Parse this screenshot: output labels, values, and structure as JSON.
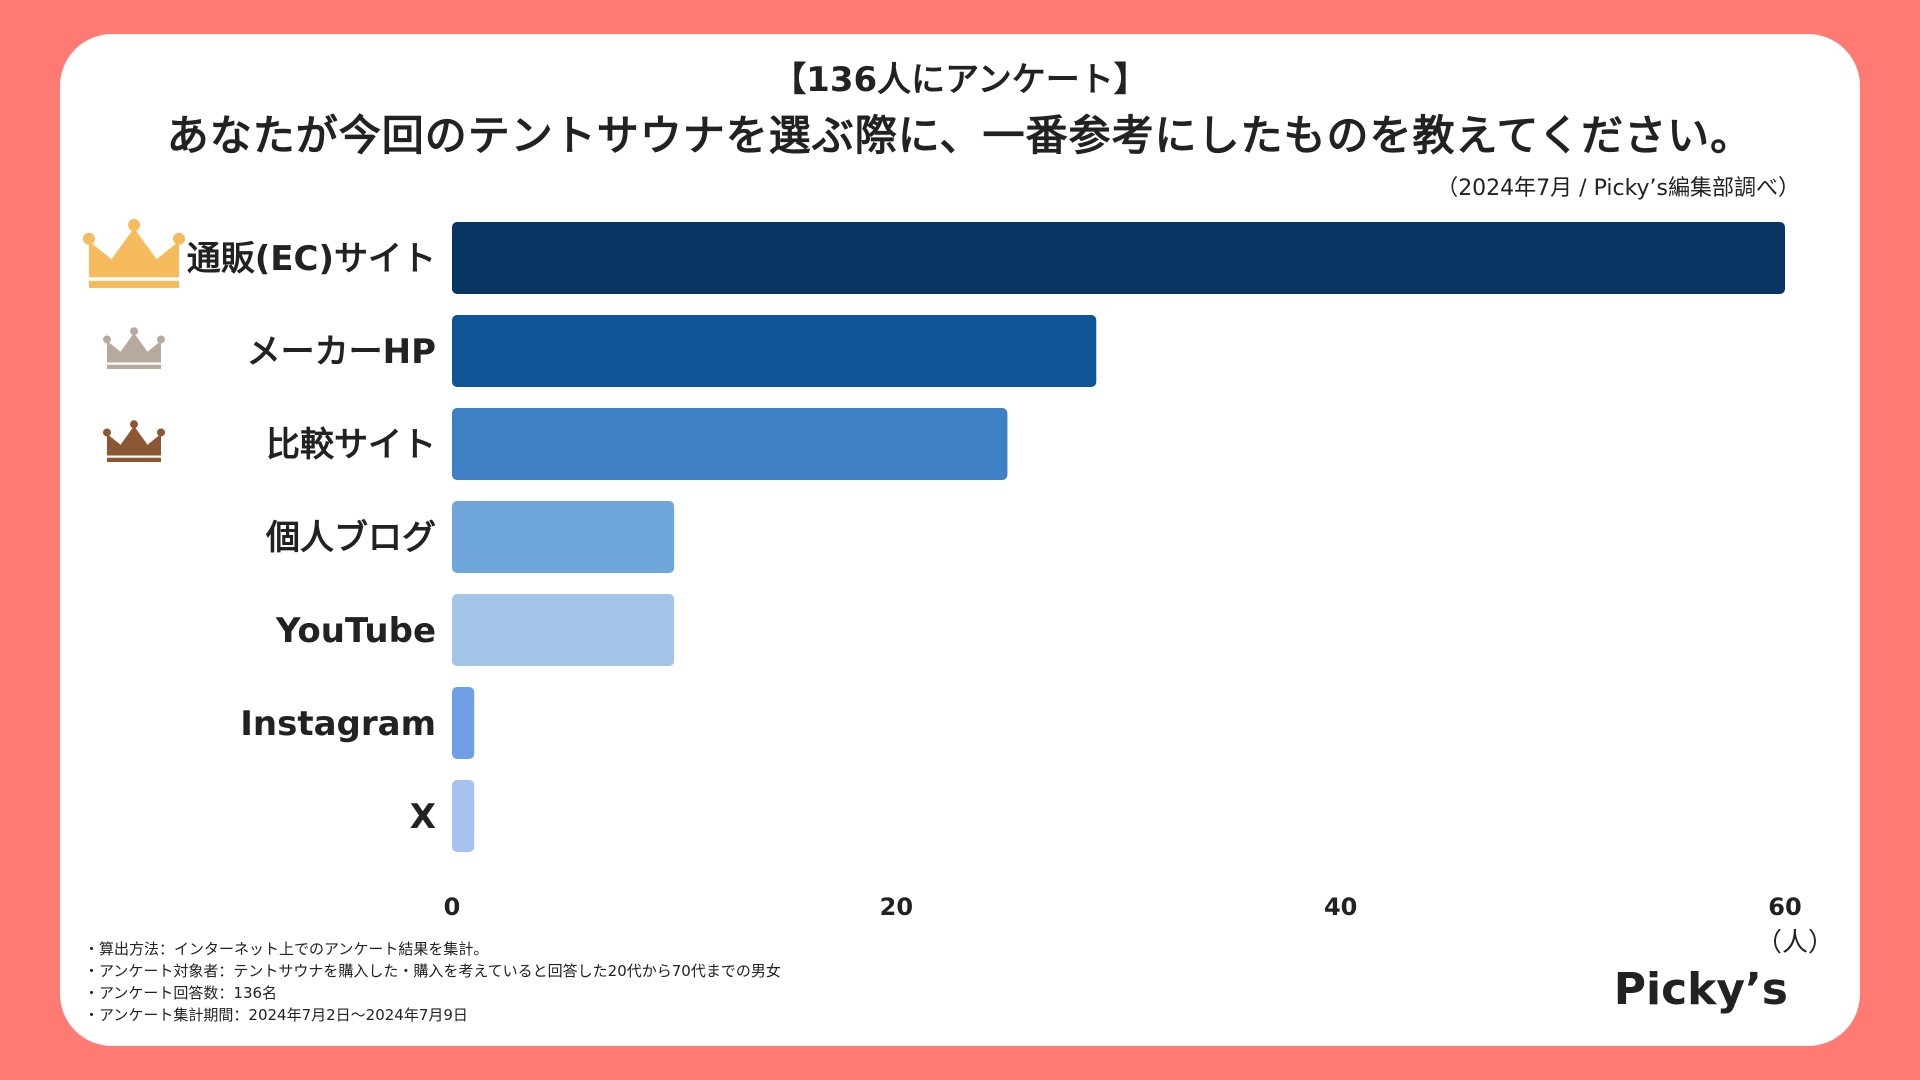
{
  "header": {
    "survey_tag": "【136人にアンケート】",
    "title": "あなたが今回のテントサウナを選ぶ際に、一番参考にしたものを教えてください。",
    "source": "（2024年7月 / Picky’s編集部調べ）"
  },
  "chart_data": {
    "type": "bar",
    "orientation": "horizontal",
    "categories": [
      "通販(EC)サイト",
      "メーカーHP",
      "比較サイト",
      "個人ブログ",
      "YouTube",
      "Instagram",
      "X"
    ],
    "values": [
      60,
      29,
      25,
      10,
      10,
      1,
      1
    ],
    "colors": [
      "#093563",
      "#0f5496",
      "#3d80c4",
      "#6fa7db",
      "#a2c5e8",
      "#6e9ee4",
      "#a8c2f0"
    ],
    "xlim": [
      0,
      60
    ],
    "xticks": [
      0,
      20,
      40,
      60
    ],
    "xticks_labels": [
      "0",
      "20",
      "40",
      "60"
    ],
    "unit_label": "（人）",
    "grid": false,
    "rank_icons": [
      {
        "rank": 1,
        "name": "gold-crown-icon",
        "color": "#f6bb5c"
      },
      {
        "rank": 2,
        "name": "silver-crown-icon",
        "color": "#b6aa9c"
      },
      {
        "rank": 3,
        "name": "bronze-crown-icon",
        "color": "#8c5733"
      }
    ]
  },
  "notes": [
    "・算出方法：インターネット上でのアンケート結果を集計。",
    "・アンケート対象者：テントサウナを購入した・購入を考えていると回答した20代から70代までの男女",
    "・アンケート回答数：136名",
    "・アンケート集計期間：2024年7月2日〜2024年7月9日"
  ],
  "brand": {
    "logo_text": "Picky’s"
  }
}
